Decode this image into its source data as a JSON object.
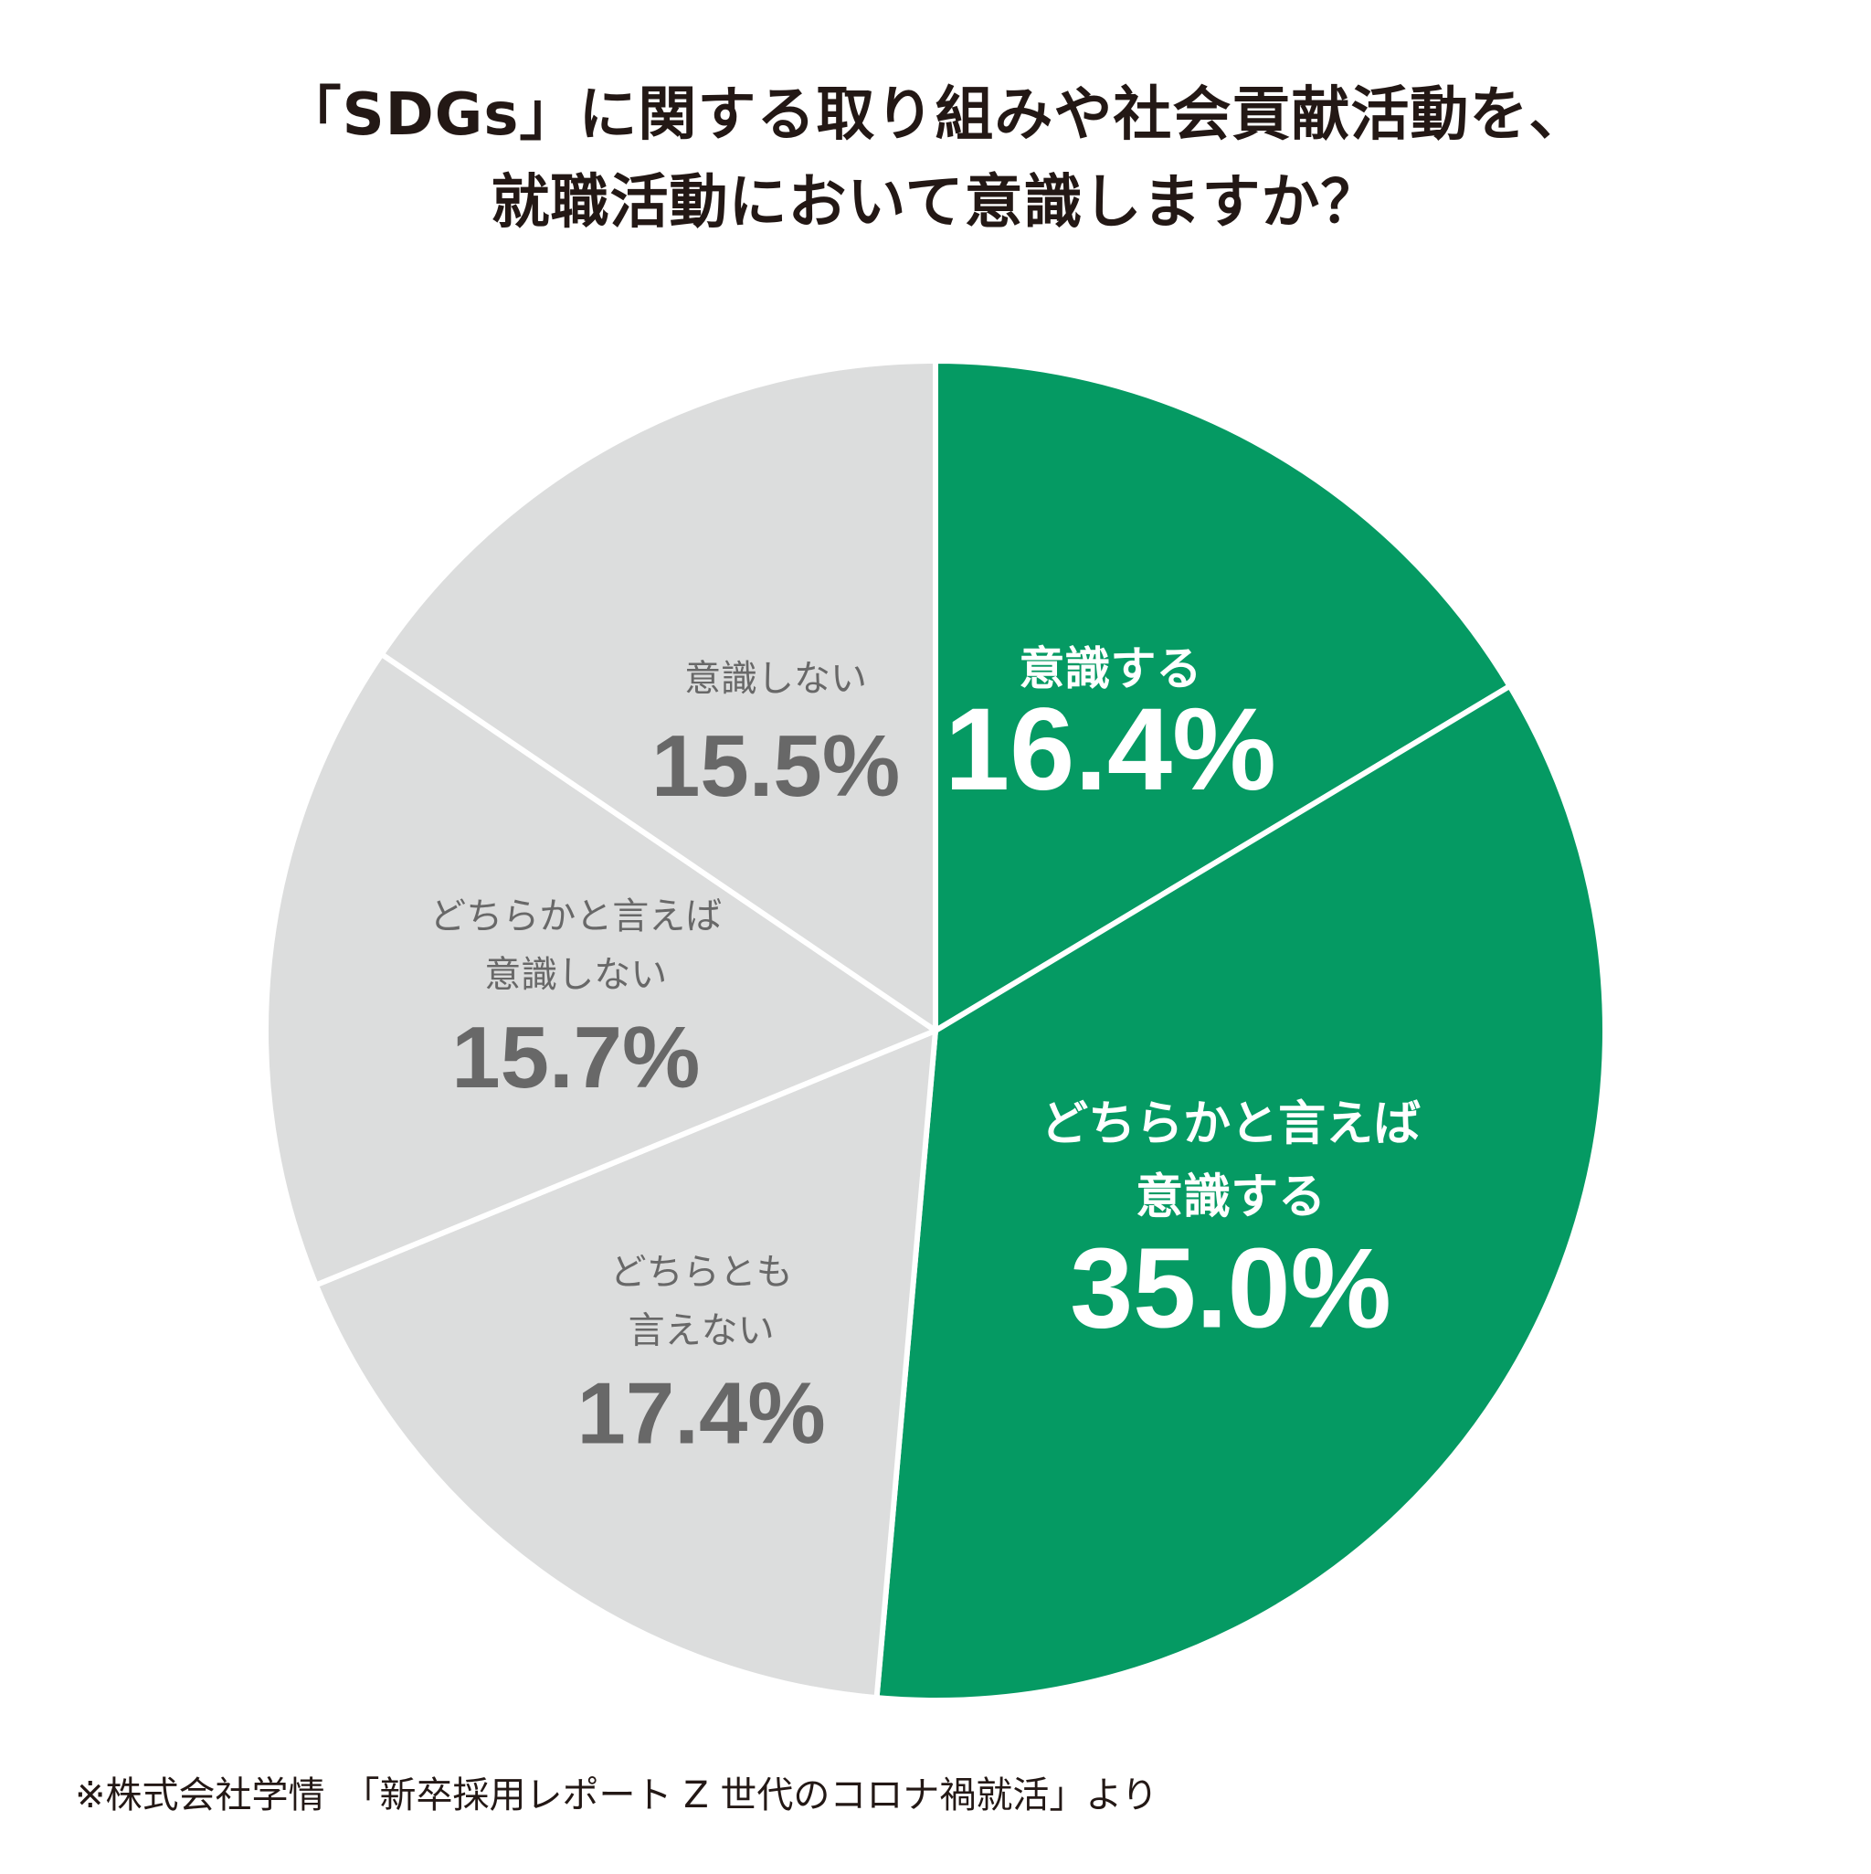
{
  "title_lines": [
    "「SDGs」に関する取り組みや社会貢献活動を、",
    "就職活動において意識しますか？"
  ],
  "source": "※株式会社学情　「新卒採用レポート Z 世代のコロナ禍就活」より",
  "colors": {
    "green": "#059a63",
    "gray": "#dcdddd",
    "gray_text": "#686868",
    "white": "#ffffff",
    "dark": "#231815"
  },
  "chart_data": {
    "type": "pie",
    "start": "top",
    "direction": "clockwise",
    "slices": [
      {
        "label_lines": [
          "意識する"
        ],
        "value": 16.4,
        "value_label": "16.4%",
        "color": "#059a63",
        "text_color": "#ffffff"
      },
      {
        "label_lines": [
          "どちらかと言えば",
          "意識する"
        ],
        "value": 35.0,
        "value_label": "35.0%",
        "color": "#059a63",
        "text_color": "#ffffff"
      },
      {
        "label_lines": [
          "どちらとも",
          "言えない"
        ],
        "value": 17.4,
        "value_label": "17.4%",
        "color": "#dcdddd",
        "text_color": "#686868"
      },
      {
        "label_lines": [
          "どちらかと言えば",
          "意識しない"
        ],
        "value": 15.7,
        "value_label": "15.7%",
        "color": "#dcdddd",
        "text_color": "#686868"
      },
      {
        "label_lines": [
          "意識しない"
        ],
        "value": 15.5,
        "value_label": "15.5%",
        "color": "#dcdddd",
        "text_color": "#686868"
      }
    ]
  }
}
